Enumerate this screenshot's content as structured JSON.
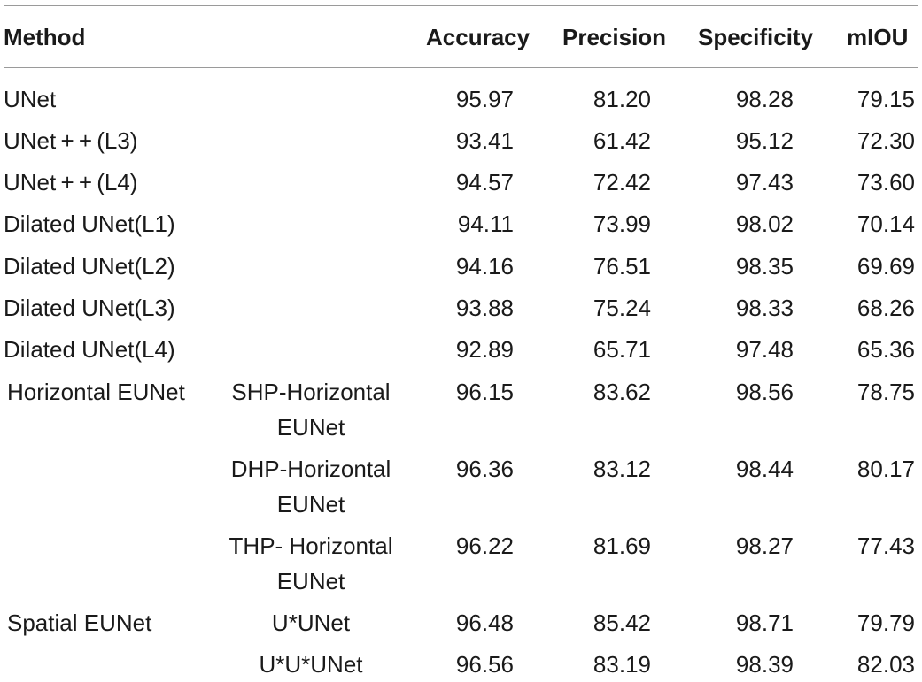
{
  "header": {
    "method": "Method",
    "accuracy": "Accuracy",
    "precision": "Precision",
    "specificity": "Specificity",
    "miou": "mIOU"
  },
  "rows": [
    {
      "method": "UNet",
      "accuracy": "95.97",
      "precision": "81.20",
      "specificity": "98.28",
      "miou": "79.15"
    },
    {
      "method": "UNet + + (L3)",
      "accuracy": "93.41",
      "precision": "61.42",
      "specificity": "95.12",
      "miou": "72.30"
    },
    {
      "method": "UNet + + (L4)",
      "accuracy": "94.57",
      "precision": "72.42",
      "specificity": "97.43",
      "miou": "73.60"
    },
    {
      "method": "Dilated UNet(L1)",
      "accuracy": "94.11",
      "precision": "73.99",
      "specificity": "98.02",
      "miou": "70.14"
    },
    {
      "method": "Dilated UNet(L2)",
      "accuracy": "94.16",
      "precision": "76.51",
      "specificity": "98.35",
      "miou": "69.69"
    },
    {
      "method": "Dilated UNet(L3)",
      "accuracy": "93.88",
      "precision": "75.24",
      "specificity": "98.33",
      "miou": "68.26"
    },
    {
      "method": "Dilated UNet(L4)",
      "accuracy": "92.89",
      "precision": "65.71",
      "specificity": "97.48",
      "miou": "65.36"
    }
  ],
  "groups": [
    {
      "group": "Horizontal EUNet",
      "rows": [
        {
          "variant": "SHP-Horizontal EUNet",
          "accuracy": "96.15",
          "precision": "83.62",
          "specificity": "98.56",
          "miou": "78.75"
        },
        {
          "variant": "DHP-Horizontal EUNet",
          "accuracy": "96.36",
          "precision": "83.12",
          "specificity": "98.44",
          "miou": "80.17"
        },
        {
          "variant": "THP- Horizontal EUNet",
          "accuracy": "96.22",
          "precision": "81.69",
          "specificity": "98.27",
          "miou": "77.43"
        }
      ]
    },
    {
      "group": "Spatial EUNet",
      "rows": [
        {
          "variant": "U*UNet",
          "accuracy": "96.48",
          "precision": "85.42",
          "specificity": "98.71",
          "miou": "79.79"
        },
        {
          "variant": "U*U*UNet",
          "accuracy": "96.56",
          "precision": "83.19",
          "specificity": "98.39",
          "miou": "82.03"
        }
      ]
    }
  ]
}
